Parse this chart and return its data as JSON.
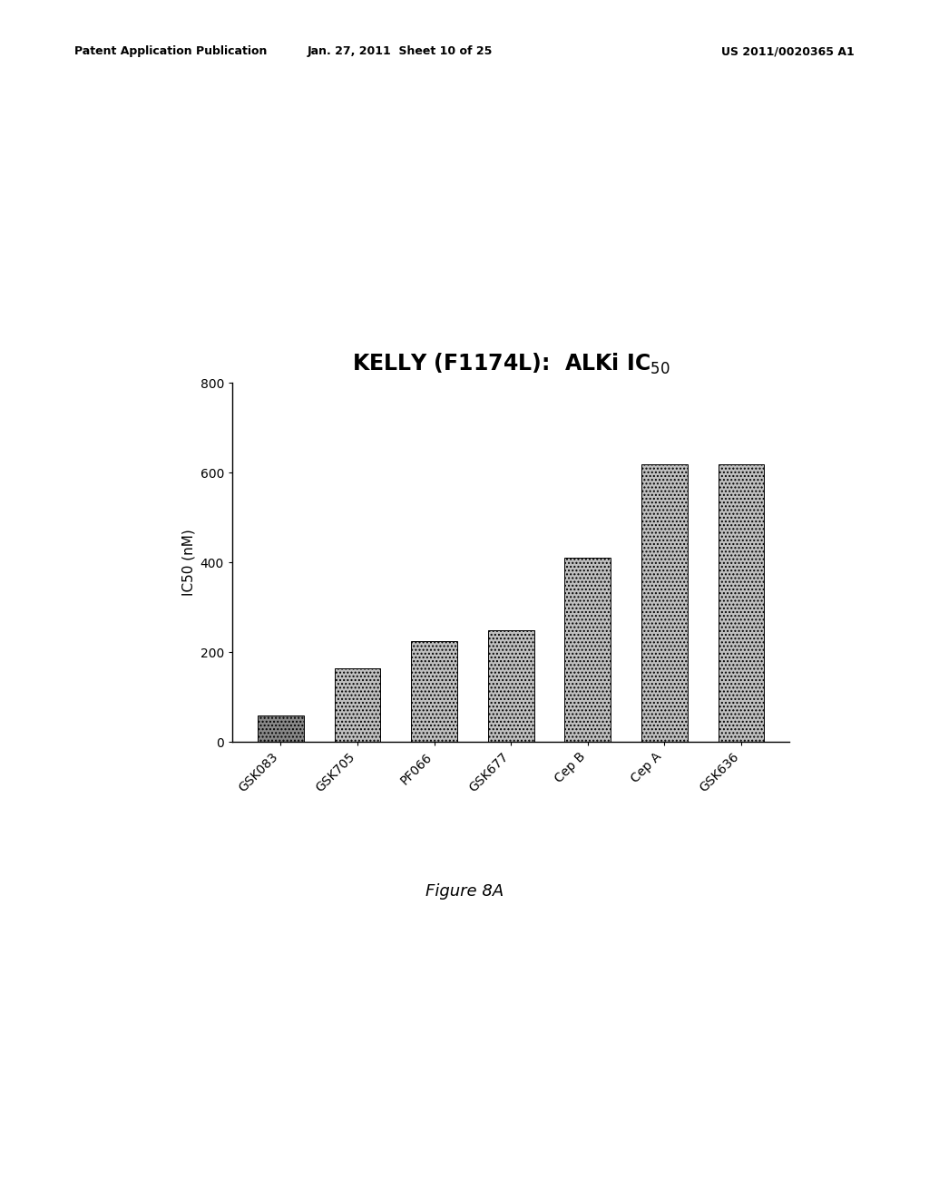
{
  "title_main": "KELLY (F1174L):  ALKi IC",
  "title_sub": "50",
  "ylabel": "IC50 (nM)",
  "ylim": [
    0,
    800
  ],
  "yticks": [
    0,
    200,
    400,
    600,
    800
  ],
  "categories": [
    "GSK083",
    "GSK705",
    "PF066",
    "GSK677",
    "Cep B",
    "Cep A",
    "GSK636"
  ],
  "values": [
    60,
    165,
    225,
    250,
    410,
    620,
    620
  ],
  "background_color": "#ffffff",
  "figure_label": "Figure 8A",
  "header_left": "Patent Application Publication",
  "header_mid": "Jan. 27, 2011  Sheet 10 of 25",
  "header_right": "US 2011/0020365 A1",
  "title_fontsize": 17,
  "axis_fontsize": 11,
  "tick_fontsize": 10,
  "header_fontsize": 9,
  "figure_label_fontsize": 13
}
